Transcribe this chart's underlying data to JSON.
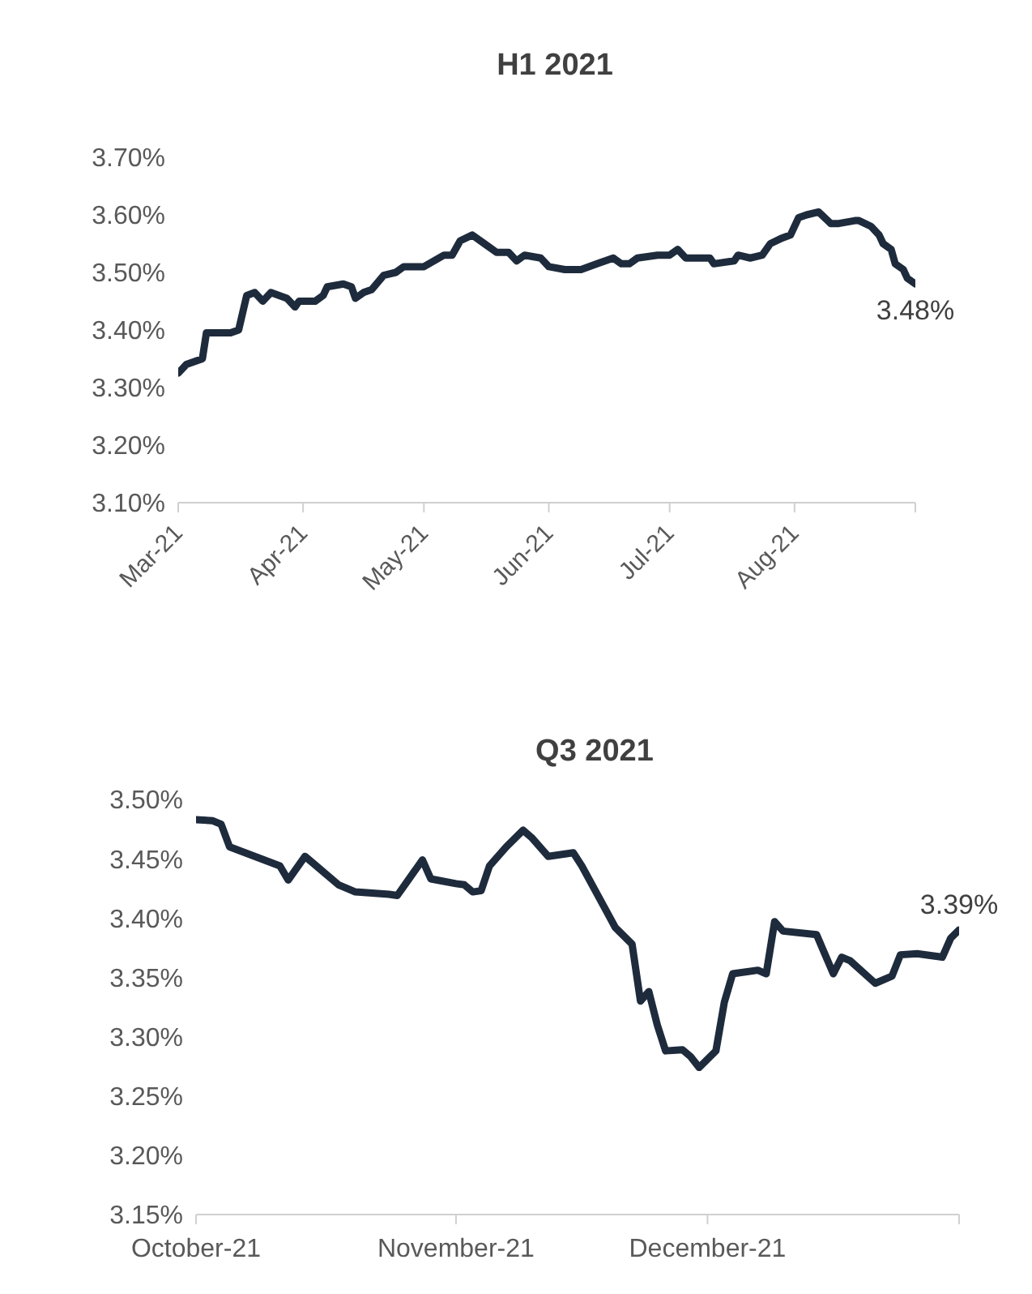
{
  "chart_data": [
    {
      "type": "line",
      "title": "H1 2021",
      "x": [
        "2021-03-01",
        "2021-03-03",
        "2021-03-07",
        "2021-03-08",
        "2021-03-14",
        "2021-03-16",
        "2021-03-18",
        "2021-03-20",
        "2021-03-22",
        "2021-03-24",
        "2021-03-28",
        "2021-03-30",
        "2021-03-31",
        "2021-04-04",
        "2021-04-06",
        "2021-04-07",
        "2021-04-11",
        "2021-04-13",
        "2021-04-14",
        "2021-04-16",
        "2021-04-18",
        "2021-04-21",
        "2021-04-24",
        "2021-04-26",
        "2021-05-01",
        "2021-05-06",
        "2021-05-08",
        "2021-05-10",
        "2021-05-13",
        "2021-05-16",
        "2021-05-19",
        "2021-05-22",
        "2021-05-24",
        "2021-05-26",
        "2021-05-30",
        "2021-06-01",
        "2021-06-05",
        "2021-06-09",
        "2021-06-13",
        "2021-06-17",
        "2021-06-19",
        "2021-06-21",
        "2021-06-23",
        "2021-06-28",
        "2021-07-01",
        "2021-07-03",
        "2021-07-05",
        "2021-07-11",
        "2021-07-12",
        "2021-07-17",
        "2021-07-18",
        "2021-07-21",
        "2021-07-24",
        "2021-07-26",
        "2021-07-29",
        "2021-07-31",
        "2021-08-02",
        "2021-08-04",
        "2021-08-07",
        "2021-08-10",
        "2021-08-12",
        "2021-08-16",
        "2021-08-17",
        "2021-08-20",
        "2021-08-22",
        "2021-08-23",
        "2021-08-25",
        "2021-08-26",
        "2021-08-28",
        "2021-08-29",
        "2021-08-31"
      ],
      "series": [
        {
          "color": "#1e2b3c",
          "values": [
            3.325,
            3.34,
            3.35,
            3.395,
            3.395,
            3.4,
            3.46,
            3.465,
            3.45,
            3.465,
            3.455,
            3.44,
            3.45,
            3.45,
            3.46,
            3.475,
            3.48,
            3.475,
            3.455,
            3.465,
            3.47,
            3.495,
            3.5,
            3.51,
            3.51,
            3.53,
            3.53,
            3.555,
            3.565,
            3.55,
            3.535,
            3.535,
            3.52,
            3.53,
            3.525,
            3.51,
            3.505,
            3.505,
            3.515,
            3.525,
            3.515,
            3.515,
            3.525,
            3.53,
            3.53,
            3.54,
            3.525,
            3.525,
            3.515,
            3.52,
            3.53,
            3.525,
            3.53,
            3.55,
            3.56,
            3.565,
            3.595,
            3.6,
            3.605,
            3.585,
            3.585,
            3.59,
            3.59,
            3.58,
            3.565,
            3.55,
            3.54,
            3.515,
            3.505,
            3.49,
            3.48
          ]
        }
      ],
      "xlim": [
        "2021-03-01",
        "2021-08-31"
      ],
      "xticks": [
        {
          "value": "2021-03-01",
          "label": "Mar-21"
        },
        {
          "value": "2021-04-01",
          "label": "Apr-21"
        },
        {
          "value": "2021-05-01",
          "label": "May-21"
        },
        {
          "value": "2021-06-01",
          "label": "Jun-21"
        },
        {
          "value": "2021-07-01",
          "label": "Jul-21"
        },
        {
          "value": "2021-08-01",
          "label": "Aug-21"
        },
        {
          "value": "2021-08-31",
          "label": null
        }
      ],
      "ylim": [
        3.1,
        3.7
      ],
      "yticks": [
        {
          "value": 3.1,
          "label": "3.10%"
        },
        {
          "value": 3.2,
          "label": "3.20%"
        },
        {
          "value": 3.3,
          "label": "3.30%"
        },
        {
          "value": 3.4,
          "label": "3.40%"
        },
        {
          "value": 3.5,
          "label": "3.50%"
        },
        {
          "value": 3.6,
          "label": "3.60%"
        },
        {
          "value": 3.7,
          "label": "3.70%"
        }
      ],
      "annotations": [
        {
          "text": "3.48%",
          "x": "2021-08-31",
          "y": 3.48
        }
      ],
      "grid": false,
      "legend": false,
      "marker": "none",
      "line_style": "solid"
    },
    {
      "type": "line",
      "title": "Q3 2021",
      "x": [
        "2021-10-01",
        "2021-10-03",
        "2021-10-04",
        "2021-10-05",
        "2021-10-08",
        "2021-10-11",
        "2021-10-12",
        "2021-10-14",
        "2021-10-15",
        "2021-10-18",
        "2021-10-20",
        "2021-10-24",
        "2021-10-25",
        "2021-10-28",
        "2021-10-29",
        "2021-11-01",
        "2021-11-02",
        "2021-11-03",
        "2021-11-04",
        "2021-11-05",
        "2021-11-07",
        "2021-11-09",
        "2021-11-10",
        "2021-11-12",
        "2021-11-15",
        "2021-11-16",
        "2021-11-19",
        "2021-11-20",
        "2021-11-22",
        "2021-11-23",
        "2021-11-24",
        "2021-11-25",
        "2021-11-26",
        "2021-11-28",
        "2021-11-29",
        "2021-11-30",
        "2021-12-02",
        "2021-12-03",
        "2021-12-04",
        "2021-12-07",
        "2021-12-08",
        "2021-12-09",
        "2021-12-10",
        "2021-12-14",
        "2021-12-16",
        "2021-12-17",
        "2021-12-18",
        "2021-12-21",
        "2021-12-23",
        "2021-12-24",
        "2021-12-26",
        "2021-12-29",
        "2021-12-30",
        "2021-12-31"
      ],
      "series": [
        {
          "color": "#1e2b3c",
          "values": [
            3.483,
            3.482,
            3.479,
            3.46,
            3.452,
            3.444,
            3.432,
            3.452,
            3.446,
            3.428,
            3.422,
            3.42,
            3.419,
            3.449,
            3.433,
            3.429,
            3.428,
            3.422,
            3.423,
            3.444,
            3.46,
            3.474,
            3.468,
            3.452,
            3.455,
            3.444,
            3.405,
            3.392,
            3.378,
            3.33,
            3.338,
            3.31,
            3.288,
            3.289,
            3.283,
            3.274,
            3.288,
            3.329,
            3.353,
            3.356,
            3.353,
            3.397,
            3.389,
            3.386,
            3.353,
            3.367,
            3.364,
            3.345,
            3.351,
            3.369,
            3.37,
            3.367,
            3.383,
            3.39
          ]
        }
      ],
      "xlim": [
        "2021-10-01",
        "2021-12-31"
      ],
      "xticks": [
        {
          "value": "2021-10-01",
          "label": "October-21"
        },
        {
          "value": "2021-11-01",
          "label": "November-21"
        },
        {
          "value": "2021-12-01",
          "label": "December-21"
        },
        {
          "value": "2021-12-31",
          "label": null
        }
      ],
      "ylim": [
        3.15,
        3.5
      ],
      "yticks": [
        {
          "value": 3.15,
          "label": "3.15%"
        },
        {
          "value": 3.2,
          "label": "3.20%"
        },
        {
          "value": 3.25,
          "label": "3.25%"
        },
        {
          "value": 3.3,
          "label": "3.30%"
        },
        {
          "value": 3.35,
          "label": "3.35%"
        },
        {
          "value": 3.4,
          "label": "3.40%"
        },
        {
          "value": 3.45,
          "label": "3.45%"
        },
        {
          "value": 3.5,
          "label": "3.50%"
        }
      ],
      "annotations": [
        {
          "text": "3.39%",
          "x": "2021-12-31",
          "y": 3.39
        }
      ],
      "grid": false,
      "legend": false,
      "marker": "none",
      "line_style": "solid"
    }
  ]
}
